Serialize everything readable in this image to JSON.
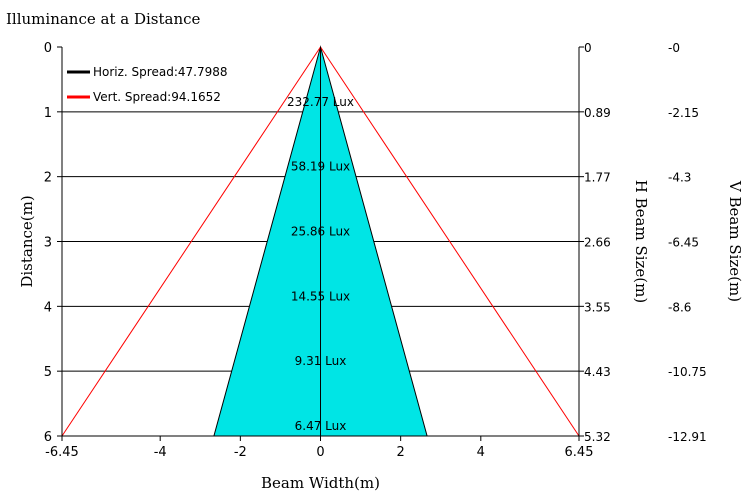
{
  "chart_data": {
    "type": "area",
    "title": "Illuminance at a Distance",
    "xlabel": "Beam Width(m)",
    "ylabel": "Distance(m)",
    "right_label_h": "H Beam Size(m)",
    "right_label_v": "V Beam Size(m)",
    "xlim": [
      -6.45,
      6.45
    ],
    "ylim": [
      0,
      6
    ],
    "x_ticks": [
      "-6.45",
      "-4",
      "-2",
      "0",
      "2",
      "4",
      "6.45"
    ],
    "x_tick_values": [
      -6.45,
      -4,
      -2,
      0,
      2,
      4,
      6.45
    ],
    "y_ticks": [
      "0",
      "1",
      "2",
      "3",
      "4",
      "5",
      "6"
    ],
    "y_tick_values": [
      0,
      1,
      2,
      3,
      4,
      5,
      6
    ],
    "h_beam_ticks": [
      "0",
      "0.89",
      "1.77",
      "2.66",
      "3.55",
      "4.43",
      "5.32"
    ],
    "v_beam_ticks": [
      "-0",
      "-2.15",
      "-4.3",
      "-6.45",
      "-8.6",
      "-10.75",
      "-12.91"
    ],
    "legend": [
      {
        "name": "Horiz. Spread:47.7988",
        "color": "#000000"
      },
      {
        "name": "Vert. Spread:94.1652",
        "color": "#ff0000"
      }
    ],
    "horizontal_half_width_at_max": 2.66,
    "vertical_half_width_at_max": 6.45,
    "fill_color": "#00e5e5",
    "lux_labels": [
      {
        "distance": 1,
        "text": "232.77 Lux"
      },
      {
        "distance": 2,
        "text": "58.19 Lux"
      },
      {
        "distance": 3,
        "text": "25.86 Lux"
      },
      {
        "distance": 4,
        "text": "14.55 Lux"
      },
      {
        "distance": 5,
        "text": "9.31 Lux"
      },
      {
        "distance": 6,
        "text": "6.47 Lux"
      }
    ],
    "legend_position": "top-left",
    "grid": "horizontal"
  }
}
